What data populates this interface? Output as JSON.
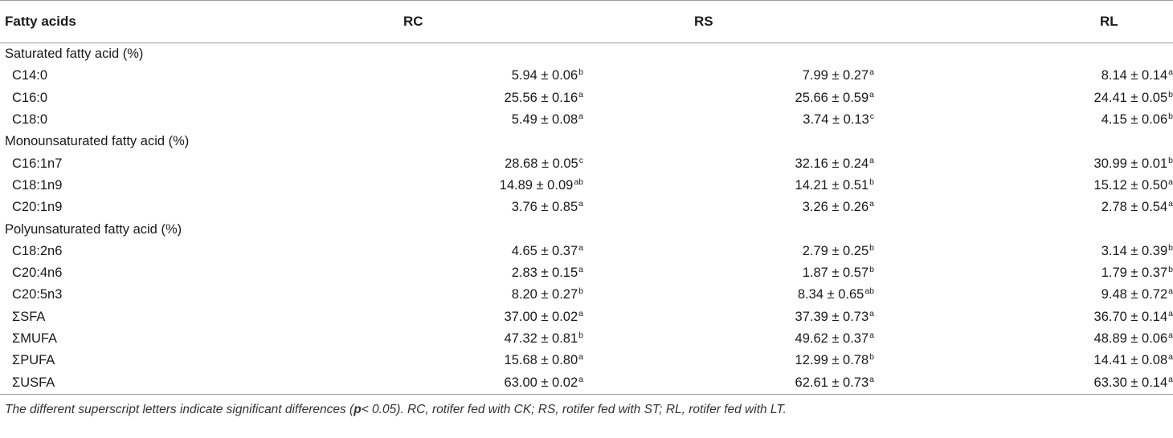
{
  "table": {
    "headers": [
      "Fatty acids",
      "RC",
      "RS",
      "RL"
    ],
    "rows": [
      {
        "type": "section",
        "label": "Saturated fatty acid (%)"
      },
      {
        "type": "data",
        "label": "C14:0",
        "cells": [
          {
            "v": "5.94 ± 0.06",
            "s": "b"
          },
          {
            "v": "7.99 ± 0.27",
            "s": "a"
          },
          {
            "v": "8.14 ± 0.14",
            "s": "a"
          }
        ]
      },
      {
        "type": "data",
        "label": "C16:0",
        "cells": [
          {
            "v": "25.56 ± 0.16",
            "s": "a"
          },
          {
            "v": "25.66 ± 0.59",
            "s": "a"
          },
          {
            "v": "24.41 ± 0.05",
            "s": "b"
          }
        ]
      },
      {
        "type": "data",
        "label": "C18:0",
        "cells": [
          {
            "v": "5.49 ± 0.08",
            "s": "a"
          },
          {
            "v": "3.74 ± 0.13",
            "s": "c"
          },
          {
            "v": "4.15 ± 0.06",
            "s": "b"
          }
        ]
      },
      {
        "type": "section",
        "label": "Monounsaturated fatty acid (%)"
      },
      {
        "type": "data",
        "label": "C16:1n7",
        "cells": [
          {
            "v": "28.68 ± 0.05",
            "s": "c"
          },
          {
            "v": "32.16 ± 0.24",
            "s": "a"
          },
          {
            "v": "30.99 ± 0.01",
            "s": "b"
          }
        ]
      },
      {
        "type": "data",
        "label": "C18:1n9",
        "cells": [
          {
            "v": "14.89 ± 0.09",
            "s": "ab"
          },
          {
            "v": "14.21 ± 0.51",
            "s": "b"
          },
          {
            "v": "15.12 ± 0.50",
            "s": "a"
          }
        ]
      },
      {
        "type": "data",
        "label": "C20:1n9",
        "cells": [
          {
            "v": "3.76 ± 0.85",
            "s": "a"
          },
          {
            "v": "3.26 ± 0.26",
            "s": "a"
          },
          {
            "v": "2.78 ± 0.54",
            "s": "a"
          }
        ]
      },
      {
        "type": "section",
        "label": "Polyunsaturated fatty acid (%)"
      },
      {
        "type": "data",
        "label": "C18:2n6",
        "cells": [
          {
            "v": "4.65 ± 0.37",
            "s": "a"
          },
          {
            "v": "2.79 ± 0.25",
            "s": "b"
          },
          {
            "v": "3.14 ± 0.39",
            "s": "b"
          }
        ]
      },
      {
        "type": "data",
        "label": "C20:4n6",
        "cells": [
          {
            "v": "2.83 ± 0.15",
            "s": "a"
          },
          {
            "v": "1.87 ± 0.57",
            "s": "b"
          },
          {
            "v": "1.79 ± 0.37",
            "s": "b"
          }
        ]
      },
      {
        "type": "data",
        "label": "C20:5n3",
        "cells": [
          {
            "v": "8.20 ± 0.27",
            "s": "b"
          },
          {
            "v": "8.34 ± 0.65",
            "s": "ab"
          },
          {
            "v": "9.48 ± 0.72",
            "s": "a"
          }
        ]
      },
      {
        "type": "data",
        "label": "ΣSFA",
        "cells": [
          {
            "v": "37.00 ± 0.02",
            "s": "a"
          },
          {
            "v": "37.39 ± 0.73",
            "s": "a"
          },
          {
            "v": "36.70 ± 0.14",
            "s": "a"
          }
        ]
      },
      {
        "type": "data",
        "label": "ΣMUFA",
        "cells": [
          {
            "v": "47.32 ± 0.81",
            "s": "b"
          },
          {
            "v": "49.62 ± 0.37",
            "s": "a"
          },
          {
            "v": "48.89 ± 0.06",
            "s": "a"
          }
        ]
      },
      {
        "type": "data",
        "label": "ΣPUFA",
        "cells": [
          {
            "v": "15.68 ± 0.80",
            "s": "a"
          },
          {
            "v": "12.99 ± 0.78",
            "s": "b"
          },
          {
            "v": "14.41 ± 0.08",
            "s": "a"
          }
        ]
      },
      {
        "type": "data",
        "label": "ΣUSFA",
        "cells": [
          {
            "v": "63.00 ± 0.02",
            "s": "a"
          },
          {
            "v": "62.61 ± 0.73",
            "s": "a"
          },
          {
            "v": "63.30 ± 0.14",
            "s": "a"
          }
        ]
      }
    ]
  },
  "footnote": {
    "before": "The different superscript letters indicate significant differences (",
    "bold": "p",
    "after": "< 0.05). RC, rotifer fed with CK; RS, rotifer fed with ST; RL, rotifer fed with LT."
  }
}
